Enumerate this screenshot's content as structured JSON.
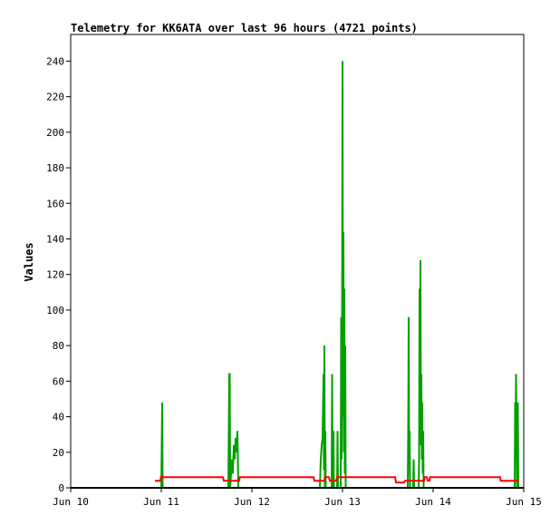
{
  "chart_data": {
    "type": "line",
    "title": "Telemetry for KK6ATA over last 96 hours (4721 points)",
    "xlabel": "",
    "ylabel": "Values",
    "x_unit": "days (Jun 10 = 10)",
    "xlim": [
      10,
      15
    ],
    "ylim": [
      0,
      255
    ],
    "x_ticks": [
      {
        "value": 10,
        "label": "Jun 10"
      },
      {
        "value": 11,
        "label": "Jun 11"
      },
      {
        "value": 12,
        "label": "Jun 12"
      },
      {
        "value": 13,
        "label": "Jun 13"
      },
      {
        "value": 14,
        "label": "Jun 14"
      },
      {
        "value": 15,
        "label": "Jun 15"
      }
    ],
    "y_ticks": [
      0,
      20,
      40,
      60,
      80,
      100,
      120,
      140,
      160,
      180,
      200,
      220,
      240
    ],
    "grid": false,
    "legend": "none",
    "series": [
      {
        "color": "#00a000",
        "points": [
          [
            10.93,
            0
          ],
          [
            11.0,
            0
          ],
          [
            11.01,
            48
          ],
          [
            11.015,
            0
          ],
          [
            11.74,
            0
          ],
          [
            11.75,
            64
          ],
          [
            11.755,
            64
          ],
          [
            11.76,
            0
          ],
          [
            11.77,
            8
          ],
          [
            11.78,
            16
          ],
          [
            11.79,
            8
          ],
          [
            11.8,
            24
          ],
          [
            11.81,
            16
          ],
          [
            11.82,
            28
          ],
          [
            11.83,
            20
          ],
          [
            11.84,
            32
          ],
          [
            11.85,
            0
          ],
          [
            12.75,
            0
          ],
          [
            12.76,
            16
          ],
          [
            12.77,
            24
          ],
          [
            12.78,
            28
          ],
          [
            12.79,
            64
          ],
          [
            12.795,
            10
          ],
          [
            12.8,
            80
          ],
          [
            12.805,
            0
          ],
          [
            12.81,
            32
          ],
          [
            12.815,
            0
          ],
          [
            12.88,
            0
          ],
          [
            12.885,
            64
          ],
          [
            12.89,
            0
          ],
          [
            12.9,
            32
          ],
          [
            12.905,
            0
          ],
          [
            12.94,
            0
          ],
          [
            12.945,
            32
          ],
          [
            12.95,
            0
          ],
          [
            12.98,
            0
          ],
          [
            12.985,
            96
          ],
          [
            12.99,
            16
          ],
          [
            12.995,
            80
          ],
          [
            13.0,
            240
          ],
          [
            13.005,
            40
          ],
          [
            13.01,
            144
          ],
          [
            13.015,
            20
          ],
          [
            13.02,
            112
          ],
          [
            13.025,
            8
          ],
          [
            13.03,
            80
          ],
          [
            13.035,
            0
          ],
          [
            13.72,
            0
          ],
          [
            13.725,
            32
          ],
          [
            13.73,
            96
          ],
          [
            13.735,
            16
          ],
          [
            13.74,
            32
          ],
          [
            13.745,
            0
          ],
          [
            13.78,
            0
          ],
          [
            13.785,
            16
          ],
          [
            13.79,
            0
          ],
          [
            13.84,
            0
          ],
          [
            13.845,
            16
          ],
          [
            13.85,
            112
          ],
          [
            13.855,
            24
          ],
          [
            13.86,
            128
          ],
          [
            13.865,
            32
          ],
          [
            13.87,
            64
          ],
          [
            13.875,
            16
          ],
          [
            13.88,
            48
          ],
          [
            13.885,
            8
          ],
          [
            13.89,
            32
          ],
          [
            13.895,
            0
          ],
          [
            14.9,
            0
          ],
          [
            14.905,
            48
          ],
          [
            14.91,
            24
          ],
          [
            14.915,
            64
          ],
          [
            14.92,
            32
          ],
          [
            14.925,
            0
          ],
          [
            14.93,
            0
          ],
          [
            14.935,
            48
          ],
          [
            14.94,
            0
          ],
          [
            14.95,
            0
          ]
        ]
      },
      {
        "color": "#ff0000",
        "points": [
          [
            10.93,
            4
          ],
          [
            10.99,
            4
          ],
          [
            10.995,
            6
          ],
          [
            11.68,
            6
          ],
          [
            11.69,
            4
          ],
          [
            11.86,
            4
          ],
          [
            11.865,
            6
          ],
          [
            12.68,
            6
          ],
          [
            12.69,
            4
          ],
          [
            12.8,
            4
          ],
          [
            12.805,
            6
          ],
          [
            12.85,
            6
          ],
          [
            12.86,
            4
          ],
          [
            12.93,
            4
          ],
          [
            12.94,
            6
          ],
          [
            13.58,
            6
          ],
          [
            13.59,
            3
          ],
          [
            13.68,
            3
          ],
          [
            13.69,
            4
          ],
          [
            13.9,
            4
          ],
          [
            13.905,
            6
          ],
          [
            13.93,
            6
          ],
          [
            13.94,
            4
          ],
          [
            13.96,
            4
          ],
          [
            13.965,
            6
          ],
          [
            14.74,
            6
          ],
          [
            14.745,
            4
          ],
          [
            14.95,
            4
          ]
        ]
      },
      {
        "color": "#000000",
        "points": [
          [
            10.0,
            0
          ],
          [
            15.0,
            0
          ]
        ]
      }
    ]
  }
}
